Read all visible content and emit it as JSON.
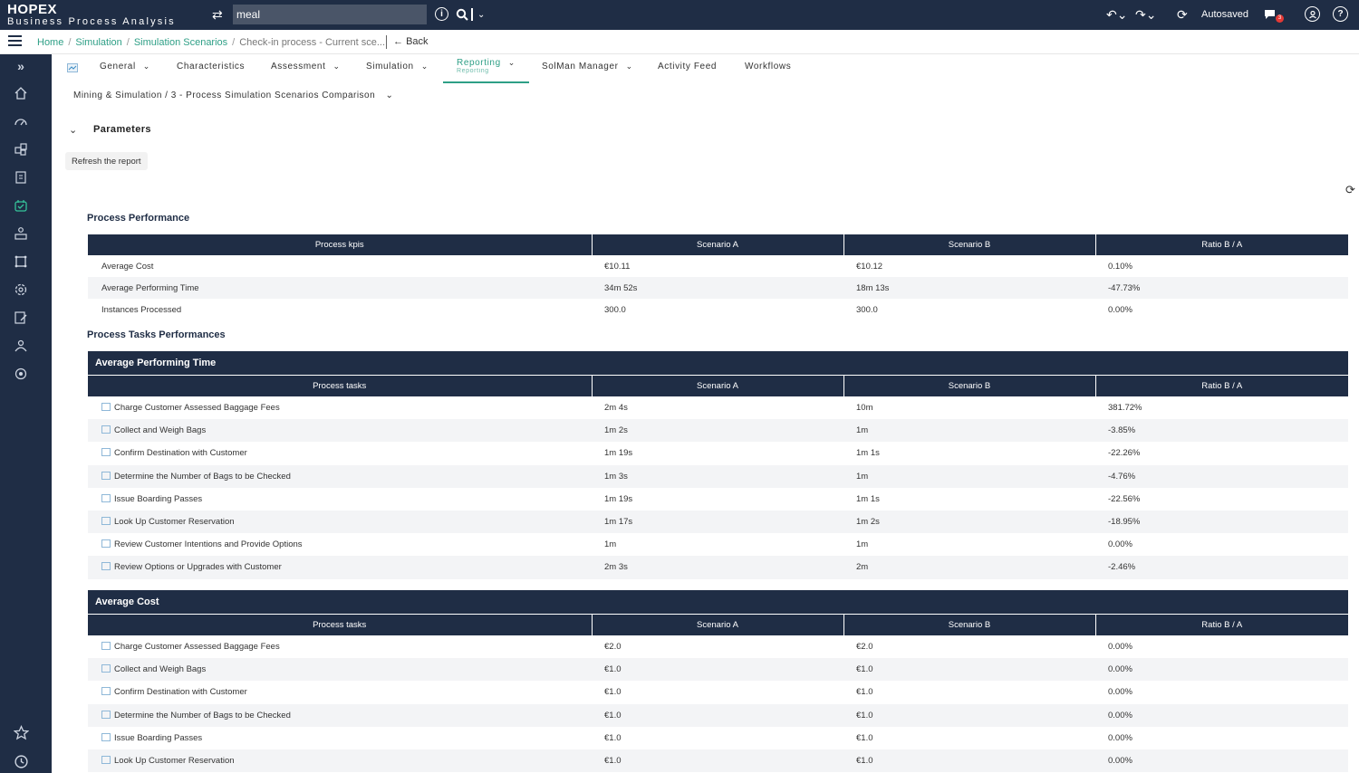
{
  "app": {
    "logo_main": "HOPEX",
    "logo_sub": "Business Process Analysis",
    "search_value": "meal",
    "autosaved": "Autosaved",
    "notif_count": "3"
  },
  "breadcrumb": {
    "items": [
      "Home",
      "Simulation",
      "Simulation Scenarios"
    ],
    "current": "Check-in process - Current sce...",
    "back": "Back"
  },
  "tabs": [
    {
      "label": "General",
      "chevron": true
    },
    {
      "label": "Characteristics",
      "chevron": false
    },
    {
      "label": "Assessment",
      "chevron": true
    },
    {
      "label": "Simulation",
      "chevron": true
    },
    {
      "label": "Reporting",
      "chevron": true,
      "active": true
    },
    {
      "label": "SolMan Manager",
      "chevron": true
    },
    {
      "label": "Activity Feed",
      "chevron": false
    },
    {
      "label": "Workflows",
      "chevron": false
    }
  ],
  "subcrumb": "Mining & Simulation / 3 - Process Simulation Scenarios Comparison",
  "parameters": {
    "title": "Parameters",
    "refresh_button": "Refresh the report"
  },
  "process_performance": {
    "title": "Process Performance",
    "headers": [
      "Process kpis",
      "Scenario A",
      "Scenario B",
      "Ratio B / A"
    ],
    "rows": [
      [
        "Average Cost",
        "€10.11",
        "€10.12",
        "0.10%"
      ],
      [
        "Average Performing Time",
        "34m 52s",
        "18m 13s",
        "-47.73%"
      ],
      [
        "Instances Processed",
        "300.0",
        "300.0",
        "0.00%"
      ]
    ]
  },
  "tasks_performances": {
    "title": "Process Tasks Performances",
    "avg_time": {
      "group_title": "Average Performing Time",
      "headers": [
        "Process tasks",
        "Scenario A",
        "Scenario B",
        "Ratio B / A"
      ],
      "rows": [
        [
          "Charge Customer Assessed Baggage Fees",
          "2m 4s",
          "10m",
          "381.72%"
        ],
        [
          "Collect and Weigh Bags",
          "1m 2s",
          "1m",
          "-3.85%"
        ],
        [
          "Confirm Destination with Customer",
          "1m 19s",
          "1m 1s",
          "-22.26%"
        ],
        [
          "Determine the Number of Bags to be Checked",
          "1m 3s",
          "1m",
          "-4.76%"
        ],
        [
          "Issue Boarding Passes",
          "1m 19s",
          "1m 1s",
          "-22.56%"
        ],
        [
          "Look Up Customer Reservation",
          "1m 17s",
          "1m 2s",
          "-18.95%"
        ],
        [
          "Review Customer Intentions and Provide Options",
          "1m",
          "1m",
          "0.00%"
        ],
        [
          "Review Options or Upgrades with Customer",
          "2m 3s",
          "2m",
          "-2.46%"
        ]
      ]
    },
    "avg_cost": {
      "group_title": "Average Cost",
      "headers": [
        "Process tasks",
        "Scenario A",
        "Scenario B",
        "Ratio B / A"
      ],
      "rows": [
        [
          "Charge Customer Assessed Baggage Fees",
          "€2.0",
          "€2.0",
          "0.00%"
        ],
        [
          "Collect and Weigh Bags",
          "€1.0",
          "€1.0",
          "0.00%"
        ],
        [
          "Confirm Destination with Customer",
          "€1.0",
          "€1.0",
          "0.00%"
        ],
        [
          "Determine the Number of Bags to be Checked",
          "€1.0",
          "€1.0",
          "0.00%"
        ],
        [
          "Issue Boarding Passes",
          "€1.0",
          "€1.0",
          "0.00%"
        ],
        [
          "Look Up Customer Reservation",
          "€1.0",
          "€1.0",
          "0.00%"
        ]
      ]
    }
  },
  "sidebar_icons": [
    "expand-icon",
    "home-icon",
    "dashboard-icon",
    "cubes-icon",
    "diagram-icon",
    "process-icon",
    "org-icon",
    "frame-icon",
    "settings-icon",
    "report-icon",
    "users-icon",
    "target-icon",
    "star-icon",
    "history-icon"
  ]
}
